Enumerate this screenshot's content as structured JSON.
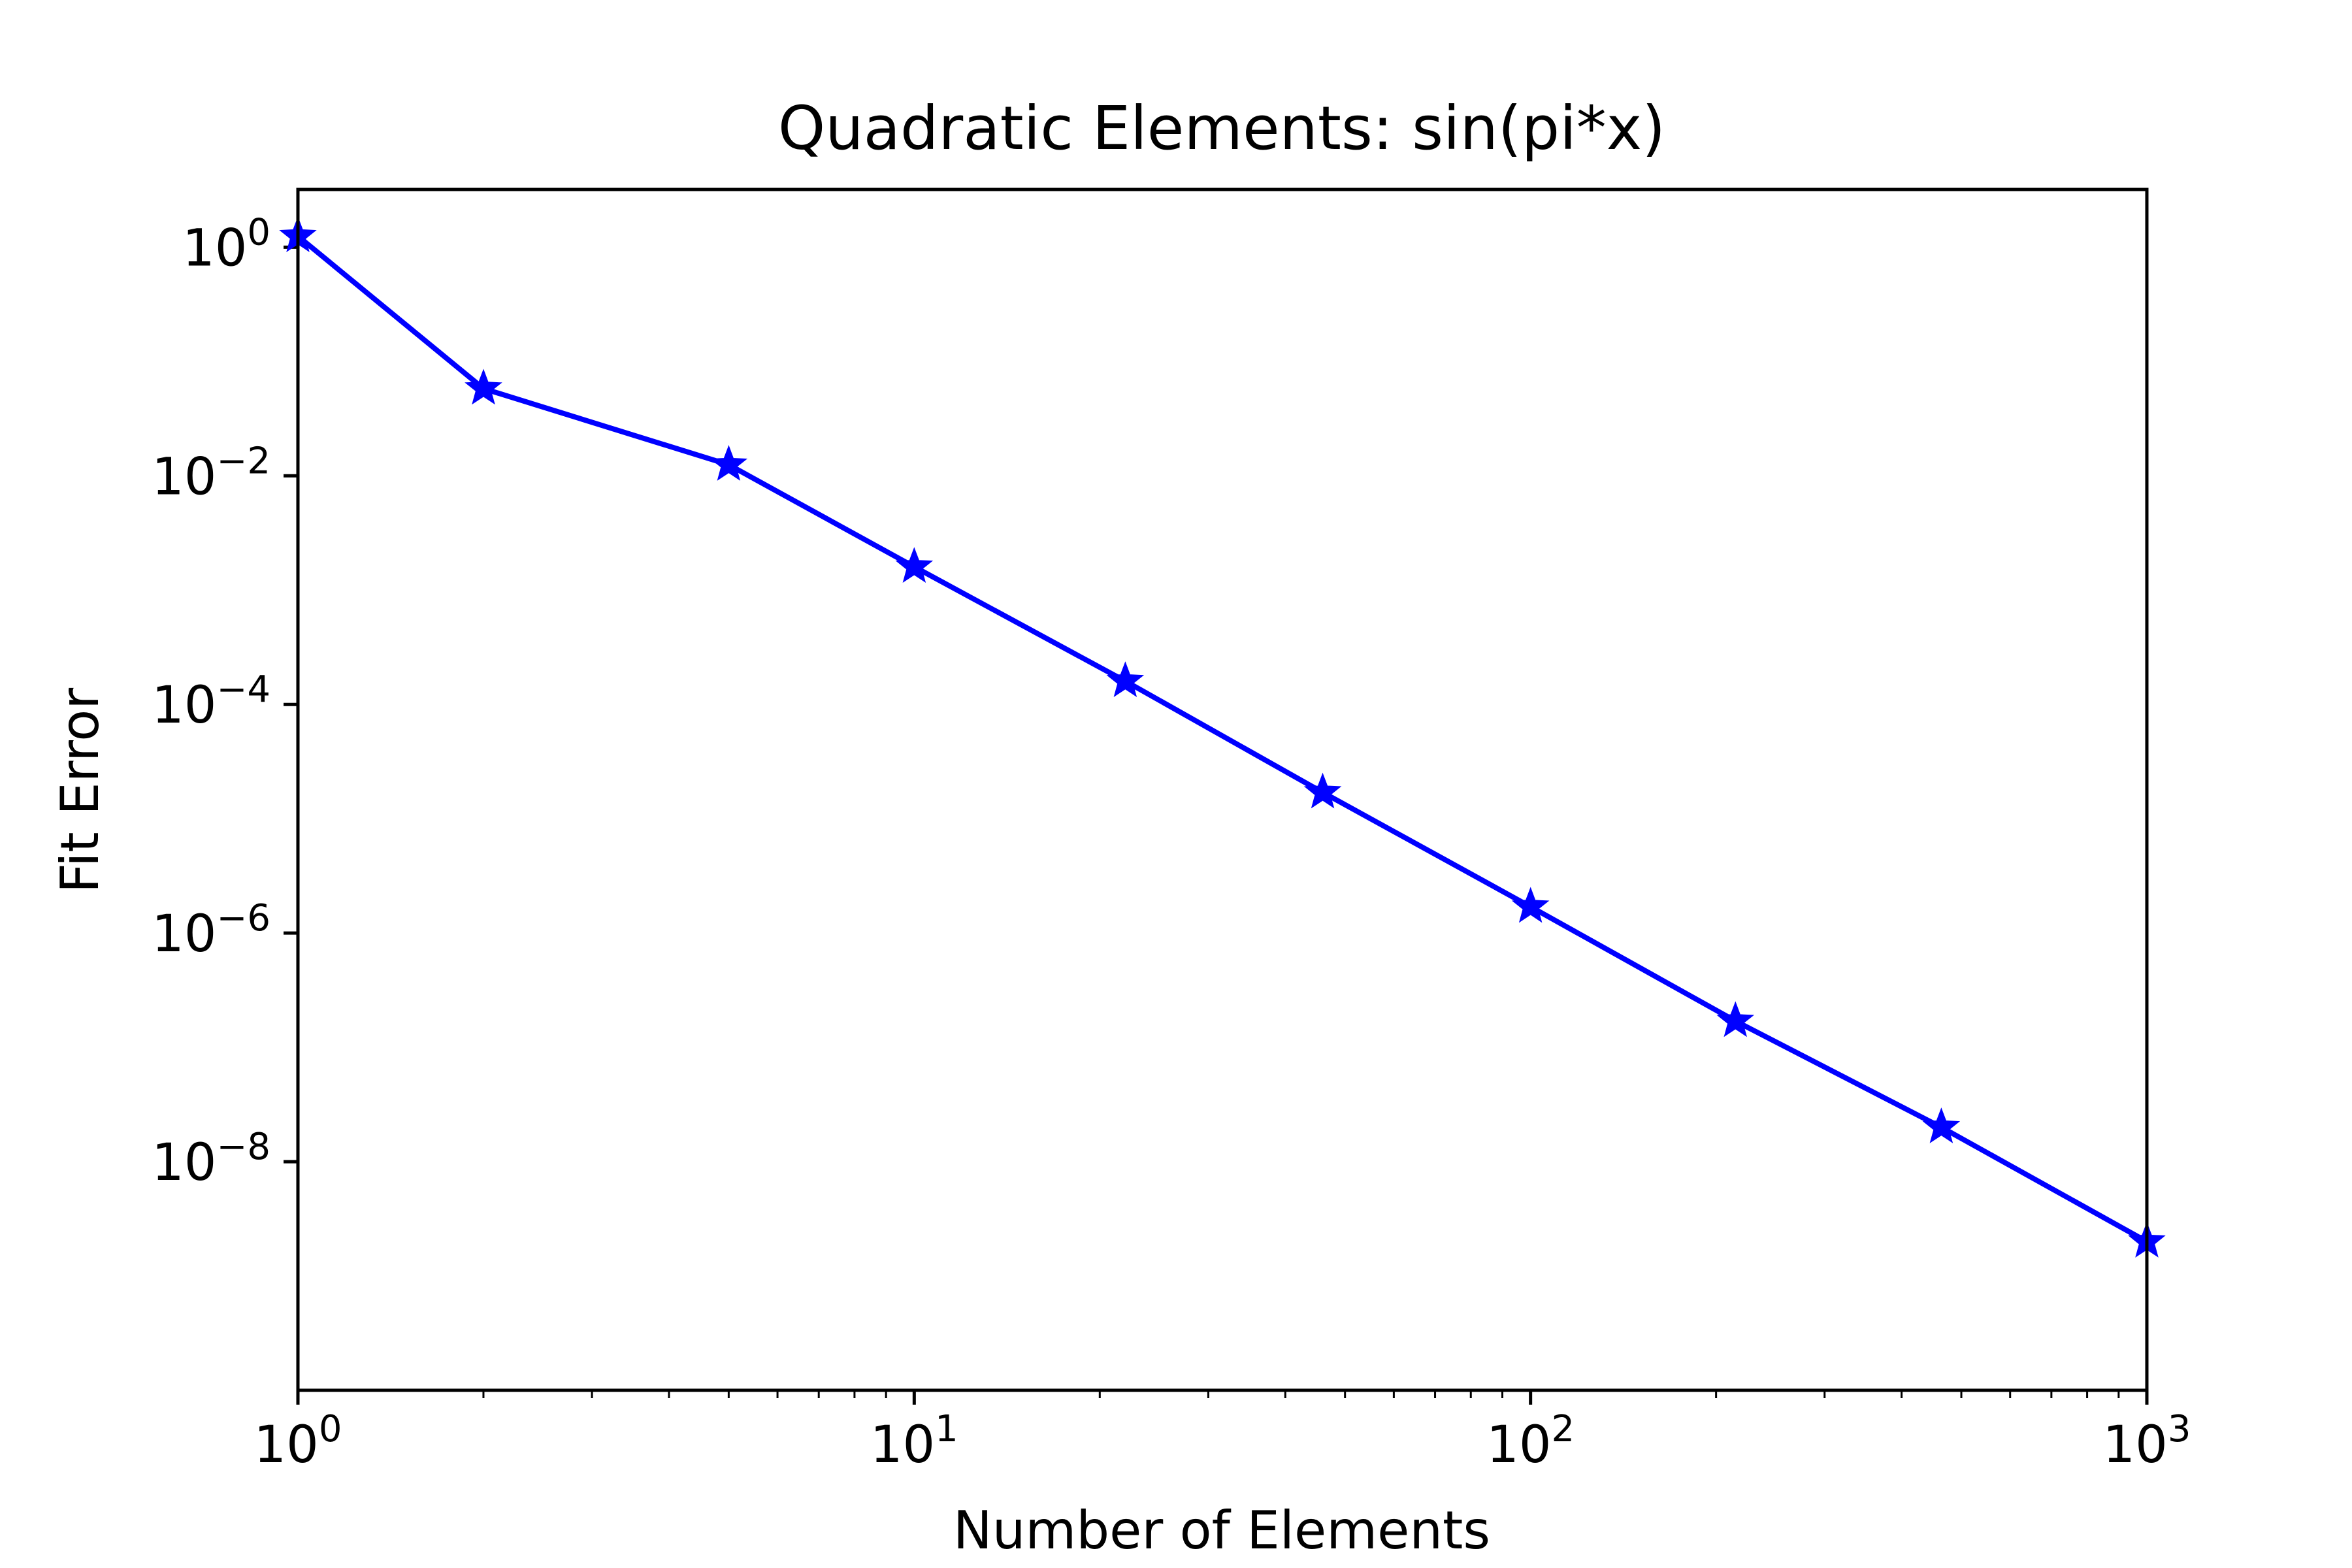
{
  "chart_data": {
    "type": "line",
    "title": "Quadratic Elements: sin(pi*x)",
    "xlabel": "Number of Elements",
    "ylabel": "Fit Error",
    "x_scale": "log",
    "y_scale": "log",
    "xlim": [
      1,
      1000
    ],
    "ylim": [
      1e-10,
      3.2
    ],
    "grid": false,
    "x_ticks": [
      {
        "value": 1,
        "base": "10",
        "exp": "0"
      },
      {
        "value": 10,
        "base": "10",
        "exp": "1"
      },
      {
        "value": 100,
        "base": "10",
        "exp": "2"
      },
      {
        "value": 1000,
        "base": "10",
        "exp": "3"
      }
    ],
    "y_ticks": [
      {
        "value": 1,
        "base": "10",
        "exp": "0"
      },
      {
        "value": 0.01,
        "base": "10",
        "exp": "−2"
      },
      {
        "value": 0.0001,
        "base": "10",
        "exp": "−4"
      },
      {
        "value": 1e-06,
        "base": "10",
        "exp": "−6"
      },
      {
        "value": 1e-08,
        "base": "10",
        "exp": "−8"
      }
    ],
    "series": [
      {
        "color": "#0000ff",
        "marker": "star",
        "x": [
          1,
          2,
          5,
          10,
          22,
          46,
          100,
          215,
          464,
          1000
        ],
        "y": [
          1.25,
          0.058,
          0.0125,
          0.0016,
          0.00016,
          1.7e-05,
          1.7e-06,
          1.7e-07,
          2e-08,
          2e-09
        ]
      }
    ]
  }
}
